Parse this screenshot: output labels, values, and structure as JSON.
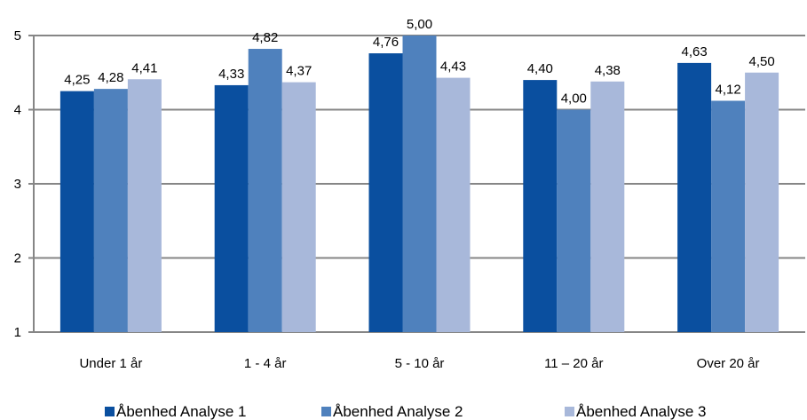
{
  "chart_data": {
    "type": "bar",
    "categories": [
      "Under 1 år",
      "1 - 4 år",
      "5 - 10 år",
      "11 – 20 år",
      "Over 20 år"
    ],
    "series": [
      {
        "name": "Åbenhed Analyse 1",
        "color": "#0a4f9f",
        "values": [
          4.25,
          4.33,
          4.76,
          4.4,
          4.63
        ],
        "labels": [
          "4,25",
          "4,33",
          "4,76",
          "4,40",
          "4,63"
        ]
      },
      {
        "name": "Åbenhed Analyse 2",
        "color": "#4f81bd",
        "values": [
          4.28,
          4.82,
          5.0,
          4.0,
          4.12
        ],
        "labels": [
          "4,28",
          "4,82",
          "5,00",
          "4,00",
          "4,12"
        ]
      },
      {
        "name": "Åbenhed Analyse 3",
        "color": "#a8b8da",
        "values": [
          4.41,
          4.37,
          4.43,
          4.38,
          4.5
        ],
        "labels": [
          "4,41",
          "4,37",
          "4,43",
          "4,38",
          "4,50"
        ]
      }
    ],
    "ylim": [
      1,
      5
    ],
    "yticks": [
      "1",
      "2",
      "3",
      "4",
      "5"
    ],
    "grid": true,
    "gridline_color": "#868686",
    "legend_position": "bottom",
    "title": "",
    "xlabel": "",
    "ylabel": ""
  }
}
